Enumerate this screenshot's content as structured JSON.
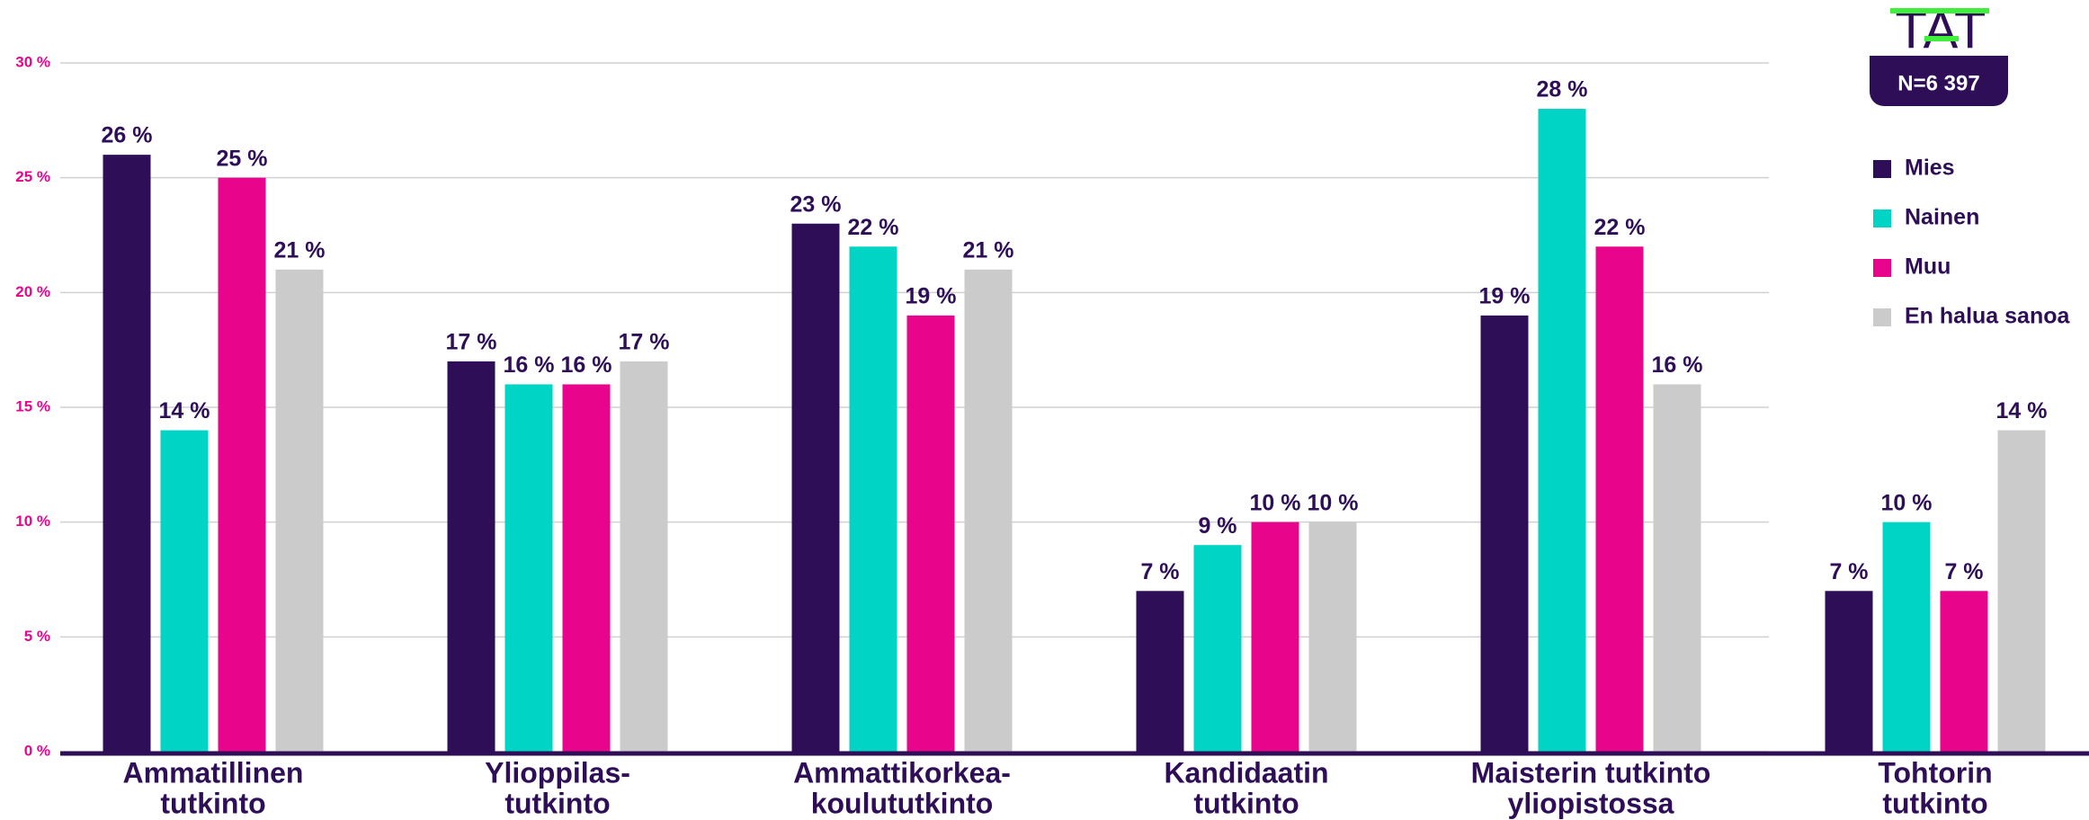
{
  "chart_data": {
    "type": "bar",
    "logo": "TAT",
    "annotation": "N=6 397",
    "categories": [
      [
        "Ammatillinen",
        "tutkinto"
      ],
      [
        "Ylioppilas-",
        "tutkinto"
      ],
      [
        "Ammattikorkea-",
        "koulututkinto"
      ],
      [
        "Kandidaatin",
        "tutkinto"
      ],
      [
        "Maisterin tutkinto",
        "yliopistossa"
      ],
      [
        "Tohtorin",
        "tutkinto"
      ]
    ],
    "series": [
      {
        "name": "Mies",
        "color": "#2e0f57",
        "values": [
          26,
          17,
          23,
          7,
          19,
          7
        ],
        "value_labels": [
          "26 %",
          "17 %",
          "23 %",
          "7 %",
          "19 %",
          "7 %"
        ]
      },
      {
        "name": "Nainen",
        "color": "#00d4c4",
        "values": [
          14,
          16,
          22,
          9,
          28,
          10
        ],
        "value_labels": [
          "14 %",
          "16 %",
          "22 %",
          "9 %",
          "28 %",
          "10 %"
        ]
      },
      {
        "name": "Muu",
        "color": "#e8058c",
        "values": [
          25,
          16,
          19,
          10,
          22,
          7
        ],
        "value_labels": [
          "25 %",
          "16 %",
          "19 %",
          "10 %",
          "22 %",
          "7 %"
        ]
      },
      {
        "name": "En halua sanoa",
        "color": "#cbcbcb",
        "values": [
          21,
          17,
          21,
          10,
          16,
          14
        ],
        "value_labels": [
          "21 %",
          "17 %",
          "21 %",
          "10 %",
          "16 %",
          "14 %"
        ]
      }
    ],
    "ylim": [
      0,
      30
    ],
    "yticks": [
      {
        "value": 0,
        "label": "0 %"
      },
      {
        "value": 5,
        "label": "5 %"
      },
      {
        "value": 10,
        "label": "10 %"
      },
      {
        "value": 15,
        "label": "15 %"
      },
      {
        "value": 20,
        "label": "20 %"
      },
      {
        "value": 25,
        "label": "25 %"
      },
      {
        "value": 30,
        "label": "30 %"
      }
    ],
    "grid": true,
    "legend": "right"
  }
}
